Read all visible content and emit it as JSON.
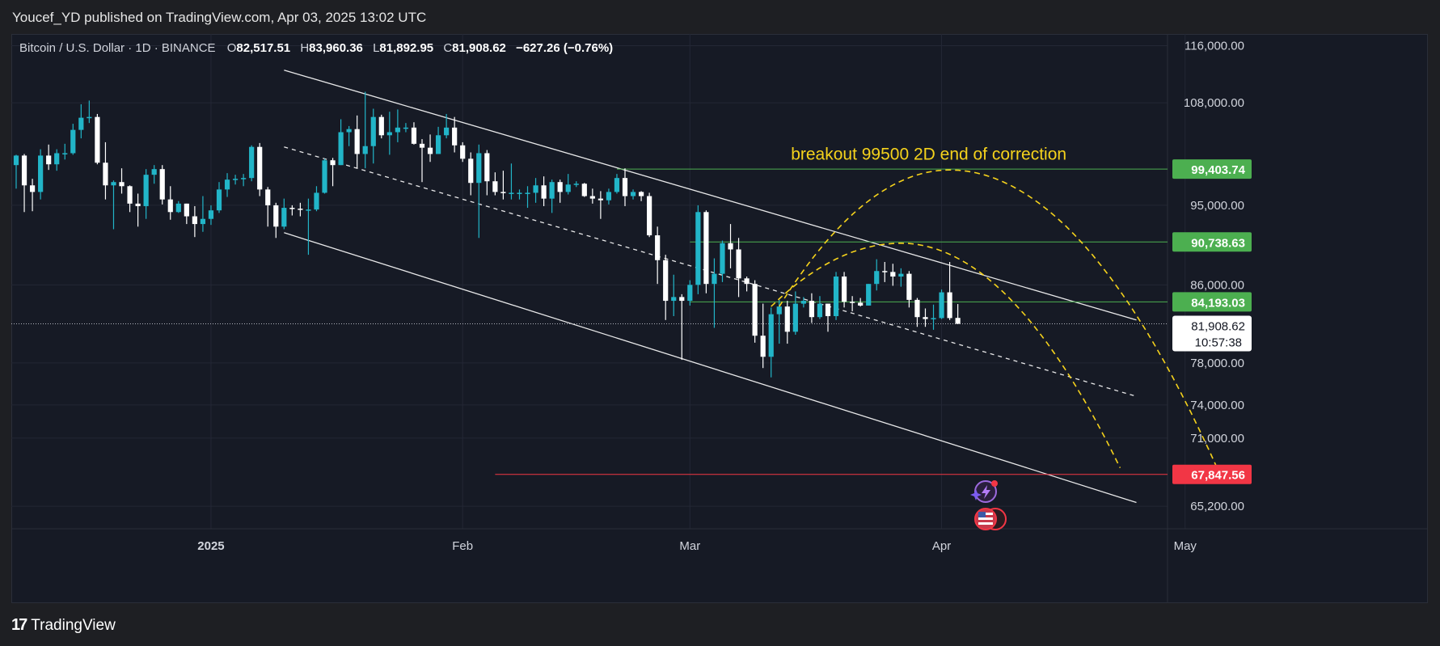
{
  "header": {
    "published_by": "Youcef_YD published on TradingView.com, Apr 03, 2025 13:02 UTC"
  },
  "footer": {
    "brand_mark": "17",
    "brand_name": "TradingView"
  },
  "theme": {
    "background": "#161a25",
    "up_color": "#22b5c8",
    "down_color": "#ffffff",
    "level_green": "#4caf50",
    "level_red": "#f23645",
    "annotation_color": "#f5d21c"
  },
  "legend": {
    "symbol": "Bitcoin / U.S. Dollar · 1D · BINANCE",
    "open_label": "O",
    "open": "82,517.51",
    "high_label": "H",
    "high": "83,960.36",
    "low_label": "L",
    "low": "81,892.95",
    "close_label": "C",
    "close": "81,908.62",
    "change": "−627.26 (−0.76%)"
  },
  "chart_data": {
    "type": "candlestick",
    "title": "Bitcoin / U.S. Dollar · 1D · BINANCE",
    "x_range": [
      "2024-12-08",
      "2025-05-14"
    ],
    "y_range": [
      63000,
      117000
    ],
    "y_scale": "log",
    "y_ticks": [
      "116,000.00",
      "108,000.00",
      "95,000.00",
      "86,000.00",
      "78,000.00",
      "74,000.00",
      "71,000.00",
      "65,200.00"
    ],
    "x_ticks": [
      {
        "date": "2025-01-01",
        "label": "2025",
        "bold": true
      },
      {
        "date": "2025-02-01",
        "label": "Feb",
        "bold": false
      },
      {
        "date": "2025-03-01",
        "label": "Mar",
        "bold": false
      },
      {
        "date": "2025-04-01",
        "label": "Apr",
        "bold": false
      },
      {
        "date": "2025-05-01",
        "label": "May",
        "bold": false
      }
    ],
    "candles": [
      {
        "date": "2024-12-08",
        "o": 99900,
        "h": 101200,
        "l": 97000,
        "c": 101100
      },
      {
        "date": "2024-12-09",
        "o": 101100,
        "h": 101300,
        "l": 94200,
        "c": 97400
      },
      {
        "date": "2024-12-10",
        "o": 97400,
        "h": 98200,
        "l": 94300,
        "c": 96600
      },
      {
        "date": "2024-12-11",
        "o": 96600,
        "h": 101900,
        "l": 95700,
        "c": 101100
      },
      {
        "date": "2024-12-12",
        "o": 101100,
        "h": 102500,
        "l": 99300,
        "c": 100000
      },
      {
        "date": "2024-12-13",
        "o": 100000,
        "h": 101900,
        "l": 99200,
        "c": 101400
      },
      {
        "date": "2024-12-14",
        "o": 101400,
        "h": 102600,
        "l": 100600,
        "c": 101400
      },
      {
        "date": "2024-12-15",
        "o": 101400,
        "h": 105200,
        "l": 101200,
        "c": 104400
      },
      {
        "date": "2024-12-16",
        "o": 104400,
        "h": 107800,
        "l": 103300,
        "c": 106000
      },
      {
        "date": "2024-12-17",
        "o": 106000,
        "h": 108300,
        "l": 105300,
        "c": 106100
      },
      {
        "date": "2024-12-18",
        "o": 106100,
        "h": 106500,
        "l": 100000,
        "c": 100200
      },
      {
        "date": "2024-12-19",
        "o": 100200,
        "h": 102800,
        "l": 95700,
        "c": 97400
      },
      {
        "date": "2024-12-20",
        "o": 97400,
        "h": 98000,
        "l": 92200,
        "c": 97800
      },
      {
        "date": "2024-12-21",
        "o": 97800,
        "h": 99500,
        "l": 96400,
        "c": 97300
      },
      {
        "date": "2024-12-22",
        "o": 97300,
        "h": 97400,
        "l": 94200,
        "c": 95200
      },
      {
        "date": "2024-12-23",
        "o": 95200,
        "h": 96400,
        "l": 92500,
        "c": 94900
      },
      {
        "date": "2024-12-24",
        "o": 94900,
        "h": 99400,
        "l": 93400,
        "c": 98700
      },
      {
        "date": "2024-12-25",
        "o": 98700,
        "h": 99900,
        "l": 97600,
        "c": 99400
      },
      {
        "date": "2024-12-26",
        "o": 99400,
        "h": 99900,
        "l": 95100,
        "c": 95700
      },
      {
        "date": "2024-12-27",
        "o": 95700,
        "h": 97300,
        "l": 93300,
        "c": 94200
      },
      {
        "date": "2024-12-28",
        "o": 94200,
        "h": 95500,
        "l": 94100,
        "c": 95200
      },
      {
        "date": "2024-12-29",
        "o": 95200,
        "h": 95200,
        "l": 92800,
        "c": 93700
      },
      {
        "date": "2024-12-30",
        "o": 93700,
        "h": 94900,
        "l": 91300,
        "c": 92800
      },
      {
        "date": "2024-12-31",
        "o": 92800,
        "h": 96100,
        "l": 91900,
        "c": 93400
      },
      {
        "date": "2025-01-01",
        "o": 93400,
        "h": 95000,
        "l": 92700,
        "c": 94400
      },
      {
        "date": "2025-01-02",
        "o": 94400,
        "h": 97800,
        "l": 94100,
        "c": 96900
      },
      {
        "date": "2025-01-03",
        "o": 96900,
        "h": 98900,
        "l": 96000,
        "c": 98100
      },
      {
        "date": "2025-01-04",
        "o": 98100,
        "h": 98700,
        "l": 97500,
        "c": 98200
      },
      {
        "date": "2025-01-05",
        "o": 98200,
        "h": 98800,
        "l": 97300,
        "c": 98300
      },
      {
        "date": "2025-01-06",
        "o": 98300,
        "h": 102400,
        "l": 97900,
        "c": 102200
      },
      {
        "date": "2025-01-07",
        "o": 102200,
        "h": 102700,
        "l": 96100,
        "c": 96900
      },
      {
        "date": "2025-01-08",
        "o": 96900,
        "h": 97200,
        "l": 92500,
        "c": 95000
      },
      {
        "date": "2025-01-09",
        "o": 95000,
        "h": 95300,
        "l": 91200,
        "c": 92500
      },
      {
        "date": "2025-01-10",
        "o": 92500,
        "h": 95800,
        "l": 92200,
        "c": 94700
      },
      {
        "date": "2025-01-11",
        "o": 94700,
        "h": 95000,
        "l": 93800,
        "c": 94600
      },
      {
        "date": "2025-01-12",
        "o": 94600,
        "h": 95300,
        "l": 93700,
        "c": 94500
      },
      {
        "date": "2025-01-13",
        "o": 94500,
        "h": 95800,
        "l": 89300,
        "c": 94500
      },
      {
        "date": "2025-01-14",
        "o": 94500,
        "h": 97300,
        "l": 94300,
        "c": 96500
      },
      {
        "date": "2025-01-15",
        "o": 96500,
        "h": 100700,
        "l": 96400,
        "c": 100500
      },
      {
        "date": "2025-01-16",
        "o": 100500,
        "h": 100800,
        "l": 97300,
        "c": 99900
      },
      {
        "date": "2025-01-17",
        "o": 99900,
        "h": 105800,
        "l": 99900,
        "c": 104100
      },
      {
        "date": "2025-01-18",
        "o": 104100,
        "h": 104900,
        "l": 102300,
        "c": 104500
      },
      {
        "date": "2025-01-19",
        "o": 104500,
        "h": 106300,
        "l": 99500,
        "c": 101300
      },
      {
        "date": "2025-01-20",
        "o": 101300,
        "h": 109500,
        "l": 99500,
        "c": 102300
      },
      {
        "date": "2025-01-21",
        "o": 102300,
        "h": 107200,
        "l": 100100,
        "c": 106100
      },
      {
        "date": "2025-01-22",
        "o": 106100,
        "h": 106400,
        "l": 103300,
        "c": 103700
      },
      {
        "date": "2025-01-23",
        "o": 103700,
        "h": 106800,
        "l": 101200,
        "c": 104100
      },
      {
        "date": "2025-01-24",
        "o": 104100,
        "h": 107100,
        "l": 102800,
        "c": 104700
      },
      {
        "date": "2025-01-25",
        "o": 104700,
        "h": 105300,
        "l": 104100,
        "c": 104700
      },
      {
        "date": "2025-01-26",
        "o": 104700,
        "h": 105400,
        "l": 102500,
        "c": 102600
      },
      {
        "date": "2025-01-27",
        "o": 102600,
        "h": 103200,
        "l": 97800,
        "c": 102100
      },
      {
        "date": "2025-01-28",
        "o": 102100,
        "h": 103800,
        "l": 100300,
        "c": 101300
      },
      {
        "date": "2025-01-29",
        "o": 101300,
        "h": 104800,
        "l": 101300,
        "c": 103700
      },
      {
        "date": "2025-01-30",
        "o": 103700,
        "h": 106500,
        "l": 103300,
        "c": 104700
      },
      {
        "date": "2025-01-31",
        "o": 104700,
        "h": 106100,
        "l": 101500,
        "c": 102400
      },
      {
        "date": "2025-02-01",
        "o": 102400,
        "h": 102800,
        "l": 100300,
        "c": 100700
      },
      {
        "date": "2025-02-02",
        "o": 100700,
        "h": 101500,
        "l": 96200,
        "c": 97700
      },
      {
        "date": "2025-02-03",
        "o": 97700,
        "h": 102500,
        "l": 91200,
        "c": 101400
      },
      {
        "date": "2025-02-04",
        "o": 101400,
        "h": 101800,
        "l": 96200,
        "c": 97900
      },
      {
        "date": "2025-02-05",
        "o": 97900,
        "h": 99000,
        "l": 96200,
        "c": 96600
      },
      {
        "date": "2025-02-06",
        "o": 96600,
        "h": 99200,
        "l": 95700,
        "c": 96500
      },
      {
        "date": "2025-02-07",
        "o": 96500,
        "h": 100100,
        "l": 95700,
        "c": 96500
      },
      {
        "date": "2025-02-08",
        "o": 96500,
        "h": 96900,
        "l": 95700,
        "c": 96500
      },
      {
        "date": "2025-02-09",
        "o": 96500,
        "h": 97300,
        "l": 94700,
        "c": 96500
      },
      {
        "date": "2025-02-10",
        "o": 96500,
        "h": 98300,
        "l": 95300,
        "c": 97400
      },
      {
        "date": "2025-02-11",
        "o": 97400,
        "h": 98500,
        "l": 94900,
        "c": 95800
      },
      {
        "date": "2025-02-12",
        "o": 95800,
        "h": 98100,
        "l": 94100,
        "c": 97800
      },
      {
        "date": "2025-02-13",
        "o": 97800,
        "h": 98100,
        "l": 95300,
        "c": 96600
      },
      {
        "date": "2025-02-14",
        "o": 96600,
        "h": 98800,
        "l": 96300,
        "c": 97500
      },
      {
        "date": "2025-02-15",
        "o": 97500,
        "h": 97900,
        "l": 97200,
        "c": 97600
      },
      {
        "date": "2025-02-16",
        "o": 97600,
        "h": 97700,
        "l": 96000,
        "c": 96100
      },
      {
        "date": "2025-02-17",
        "o": 96100,
        "h": 97000,
        "l": 95200,
        "c": 95800
      },
      {
        "date": "2025-02-18",
        "o": 95800,
        "h": 96700,
        "l": 93400,
        "c": 95600
      },
      {
        "date": "2025-02-19",
        "o": 95600,
        "h": 97000,
        "l": 95100,
        "c": 96600
      },
      {
        "date": "2025-02-20",
        "o": 96600,
        "h": 98800,
        "l": 96400,
        "c": 98300
      },
      {
        "date": "2025-02-21",
        "o": 98300,
        "h": 99500,
        "l": 94900,
        "c": 96100
      },
      {
        "date": "2025-02-22",
        "o": 96100,
        "h": 96900,
        "l": 95700,
        "c": 96600
      },
      {
        "date": "2025-02-23",
        "o": 96600,
        "h": 96700,
        "l": 95500,
        "c": 96100
      },
      {
        "date": "2025-02-24",
        "o": 96100,
        "h": 96500,
        "l": 91300,
        "c": 91500
      },
      {
        "date": "2025-02-25",
        "o": 91500,
        "h": 92500,
        "l": 86100,
        "c": 88700
      },
      {
        "date": "2025-02-26",
        "o": 88700,
        "h": 89300,
        "l": 82300,
        "c": 84300
      },
      {
        "date": "2025-02-27",
        "o": 84300,
        "h": 87100,
        "l": 82700,
        "c": 84700
      },
      {
        "date": "2025-02-28",
        "o": 84700,
        "h": 85000,
        "l": 78300,
        "c": 84300
      },
      {
        "date": "2025-03-01",
        "o": 84300,
        "h": 86500,
        "l": 83800,
        "c": 86000
      },
      {
        "date": "2025-03-02",
        "o": 86000,
        "h": 95000,
        "l": 85000,
        "c": 94200
      },
      {
        "date": "2025-03-03",
        "o": 94200,
        "h": 94400,
        "l": 85100,
        "c": 86100
      },
      {
        "date": "2025-03-04",
        "o": 86100,
        "h": 88900,
        "l": 81500,
        "c": 87200
      },
      {
        "date": "2025-03-05",
        "o": 87200,
        "h": 90900,
        "l": 86300,
        "c": 90600
      },
      {
        "date": "2025-03-06",
        "o": 90600,
        "h": 92800,
        "l": 87800,
        "c": 89900
      },
      {
        "date": "2025-03-07",
        "o": 89900,
        "h": 91200,
        "l": 84700,
        "c": 86700
      },
      {
        "date": "2025-03-08",
        "o": 86700,
        "h": 86900,
        "l": 85300,
        "c": 86100
      },
      {
        "date": "2025-03-09",
        "o": 86100,
        "h": 86500,
        "l": 80000,
        "c": 80700
      },
      {
        "date": "2025-03-10",
        "o": 80700,
        "h": 84000,
        "l": 77500,
        "c": 78600
      },
      {
        "date": "2025-03-11",
        "o": 78600,
        "h": 83600,
        "l": 76600,
        "c": 82900
      },
      {
        "date": "2025-03-12",
        "o": 82900,
        "h": 84400,
        "l": 79900,
        "c": 83700
      },
      {
        "date": "2025-03-13",
        "o": 83700,
        "h": 84300,
        "l": 79900,
        "c": 81100
      },
      {
        "date": "2025-03-14",
        "o": 81100,
        "h": 85300,
        "l": 80800,
        "c": 84000
      },
      {
        "date": "2025-03-15",
        "o": 84000,
        "h": 84700,
        "l": 83600,
        "c": 84300
      },
      {
        "date": "2025-03-16",
        "o": 84300,
        "h": 85100,
        "l": 82000,
        "c": 82600
      },
      {
        "date": "2025-03-17",
        "o": 82600,
        "h": 84800,
        "l": 82400,
        "c": 84000
      },
      {
        "date": "2025-03-18",
        "o": 84000,
        "h": 84000,
        "l": 81100,
        "c": 82700
      },
      {
        "date": "2025-03-19",
        "o": 82700,
        "h": 87400,
        "l": 82300,
        "c": 86900
      },
      {
        "date": "2025-03-20",
        "o": 86900,
        "h": 87400,
        "l": 83600,
        "c": 84200
      },
      {
        "date": "2025-03-21",
        "o": 84200,
        "h": 84800,
        "l": 83200,
        "c": 84100
      },
      {
        "date": "2025-03-22",
        "o": 84100,
        "h": 84600,
        "l": 83700,
        "c": 83800
      },
      {
        "date": "2025-03-23",
        "o": 83800,
        "h": 86100,
        "l": 83800,
        "c": 86100
      },
      {
        "date": "2025-03-24",
        "o": 86100,
        "h": 88800,
        "l": 85400,
        "c": 87500
      },
      {
        "date": "2025-03-25",
        "o": 87500,
        "h": 88500,
        "l": 86300,
        "c": 87400
      },
      {
        "date": "2025-03-26",
        "o": 87400,
        "h": 88300,
        "l": 85900,
        "c": 86900
      },
      {
        "date": "2025-03-27",
        "o": 86900,
        "h": 87800,
        "l": 85800,
        "c": 87200
      },
      {
        "date": "2025-03-28",
        "o": 87200,
        "h": 87500,
        "l": 83600,
        "c": 84400
      },
      {
        "date": "2025-03-29",
        "o": 84400,
        "h": 84600,
        "l": 81600,
        "c": 82600
      },
      {
        "date": "2025-03-30",
        "o": 82600,
        "h": 83500,
        "l": 81600,
        "c": 82400
      },
      {
        "date": "2025-03-31",
        "o": 82400,
        "h": 83900,
        "l": 81300,
        "c": 82500
      },
      {
        "date": "2025-04-01",
        "o": 82500,
        "h": 85500,
        "l": 82400,
        "c": 85200
      },
      {
        "date": "2025-04-02",
        "o": 85200,
        "h": 88500,
        "l": 82300,
        "c": 82500
      },
      {
        "date": "2025-04-03",
        "o": 82517.51,
        "h": 83960.36,
        "l": 81892.95,
        "c": 81908.62
      }
    ],
    "channel_lines": [
      {
        "name": "upper",
        "style": "solid",
        "from": {
          "date": "2025-01-10",
          "price": 112500
        },
        "to": {
          "date": "2025-04-25",
          "price": 82300
        }
      },
      {
        "name": "middle",
        "style": "dashed",
        "from": {
          "date": "2025-01-10",
          "price": 102200
        },
        "to": {
          "date": "2025-04-25",
          "price": 74800
        }
      },
      {
        "name": "lower",
        "style": "solid",
        "from": {
          "date": "2025-01-10",
          "price": 91800
        },
        "to": {
          "date": "2025-04-25",
          "price": 65500
        }
      }
    ],
    "horizontal_levels": [
      {
        "price": 99403.74,
        "label": "99,403.74",
        "color": "#4caf50",
        "from_date": "2025-02-20"
      },
      {
        "price": 90738.63,
        "label": "90,738.63",
        "color": "#4caf50",
        "from_date": "2025-03-01"
      },
      {
        "price": 84193.03,
        "label": "84,193.03",
        "color": "#4caf50",
        "from_date": "2025-03-01"
      },
      {
        "price": 67847.56,
        "label": "67,847.56",
        "color": "#f23645",
        "from_date": "2025-02-05"
      }
    ],
    "current_price": {
      "price": 81908.62,
      "label": "81,908.62",
      "countdown": "10:57:38"
    },
    "projection_arcs": [
      {
        "from": {
          "date": "2025-03-11",
          "price": 83700
        },
        "peak": {
          "date": "2025-03-27",
          "price": 90600
        },
        "to": {
          "date": "2025-04-23",
          "price": 68400
        }
      },
      {
        "from": {
          "date": "2025-03-12",
          "price": 83700
        },
        "peak": {
          "date": "2025-04-02",
          "price": 99300
        },
        "to": {
          "date": "2025-05-05",
          "price": 68300
        }
      }
    ],
    "annotation": {
      "text": "breakout 99500 2D end of correction",
      "date": "2025-03-23",
      "price": 100600
    }
  }
}
